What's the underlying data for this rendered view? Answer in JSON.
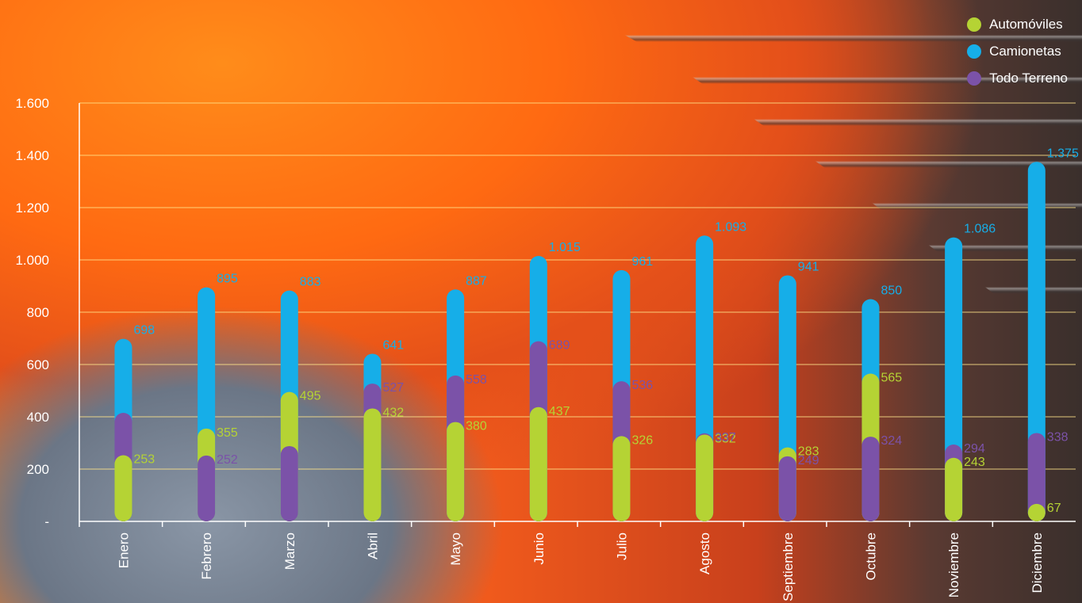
{
  "chart_data": {
    "type": "bar",
    "categories": [
      "Enero",
      "Febrero",
      "Marzo",
      "Abril",
      "Mayo",
      "Junio",
      "Julio",
      "Agosto",
      "Septiembre",
      "Octubre",
      "Noviembre",
      "Diciembre"
    ],
    "series": [
      {
        "name": "Automóviles",
        "color": "#b5d334",
        "values": [
          253,
          355,
          495,
          432,
          380,
          437,
          326,
          332,
          283,
          565,
          243,
          67
        ]
      },
      {
        "name": "Camionetas",
        "color": "#16aee8",
        "values": [
          698,
          895,
          883,
          641,
          887,
          1015,
          961,
          1093,
          941,
          850,
          1086,
          1375
        ]
      },
      {
        "name": "Todo Terreno",
        "color": "#7b52a8",
        "values": [
          415,
          252,
          288,
          527,
          558,
          689,
          536,
          337,
          249,
          324,
          294,
          338
        ]
      }
    ],
    "value_labels": {
      "Automóviles": [
        "253",
        "355",
        "495",
        "432",
        "380",
        "437",
        "326",
        "332",
        "283",
        "565",
        "243",
        "67"
      ],
      "Camionetas": [
        "698",
        "895",
        "883",
        "641",
        "887",
        "1.015",
        "961",
        "1.093",
        "941",
        "850",
        "1.086",
        "1.375"
      ],
      "Todo Terreno": [
        "",
        "252",
        "",
        "527",
        "558",
        "689",
        "536",
        "337",
        "249",
        "324",
        "294",
        "338"
      ]
    },
    "y_ticks": [
      {
        "value": 0,
        "label": "-"
      },
      {
        "value": 200,
        "label": "200"
      },
      {
        "value": 400,
        "label": "400"
      },
      {
        "value": 600,
        "label": "600"
      },
      {
        "value": 800,
        "label": "800"
      },
      {
        "value": 1000,
        "label": "1.000"
      },
      {
        "value": 1200,
        "label": "1.200"
      },
      {
        "value": 1400,
        "label": "1.400"
      },
      {
        "value": 1600,
        "label": "1.600"
      }
    ],
    "ylim": [
      0,
      1600
    ],
    "grid": true,
    "legend_position": "top-right"
  }
}
